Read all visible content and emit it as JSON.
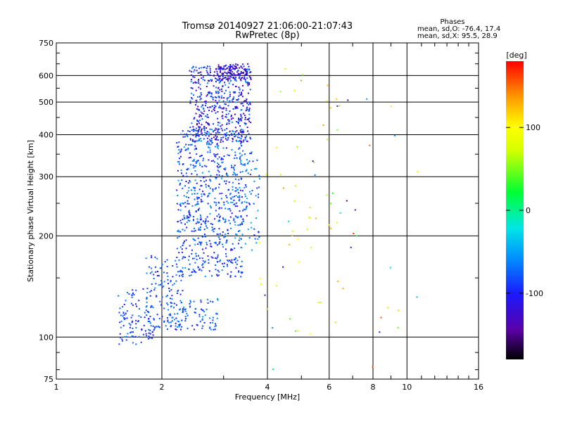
{
  "header": {
    "title_line1": "Tromsø 20140927 21:06:00-21:07:43",
    "title_line2": "RwPretec (8p)"
  },
  "stats": {
    "heading": "Phases",
    "line_o": "mean, sd,O: -76.4, 17.4",
    "line_x": "mean, sd,X: 95.5, 28.9"
  },
  "colorbar": {
    "unit": "[deg]",
    "ticks": [
      "100",
      "0",
      "-100"
    ],
    "tick_values": [
      100,
      0,
      -100
    ],
    "range": [
      -180,
      180
    ]
  },
  "chart_data": {
    "type": "scatter",
    "xlabel": "Frequency [MHz]",
    "ylabel": "Stationary phase Virtual Height [km]",
    "xscale": "log",
    "yscale": "log",
    "xlim": [
      1,
      16
    ],
    "ylim": [
      75,
      750
    ],
    "x_ticks": [
      1,
      2,
      4,
      6,
      8,
      10,
      16
    ],
    "x_tick_labels": [
      "1",
      "2",
      "4",
      "6",
      "8",
      "10",
      "16"
    ],
    "y_ticks": [
      75,
      100,
      200,
      300,
      400,
      500,
      600,
      750
    ],
    "y_tick_labels": [
      "75",
      "100",
      "200",
      "300",
      "400",
      "500",
      "600",
      "750"
    ],
    "grid": true,
    "clusters": [
      {
        "x": [
          1.5,
          1.9
        ],
        "y": [
          95,
          140
        ],
        "phase": [
          -110,
          -60
        ],
        "n": 110
      },
      {
        "x": [
          1.8,
          2.3
        ],
        "y": [
          105,
          175
        ],
        "phase": [
          -110,
          -60
        ],
        "n": 130
      },
      {
        "x": [
          2.1,
          2.9
        ],
        "y": [
          105,
          130
        ],
        "phase": [
          -110,
          -50
        ],
        "n": 90
      },
      {
        "x": [
          2.2,
          3.4
        ],
        "y": [
          150,
          230
        ],
        "phase": [
          -115,
          -55
        ],
        "n": 260
      },
      {
        "x": [
          2.2,
          3.5
        ],
        "y": [
          220,
          420
        ],
        "phase": [
          -120,
          -50
        ],
        "n": 420
      },
      {
        "x": [
          2.4,
          3.6
        ],
        "y": [
          380,
          640
        ],
        "phase": [
          -150,
          -50
        ],
        "n": 520
      },
      {
        "x": [
          2.9,
          3.6
        ],
        "y": [
          580,
          650
        ],
        "phase": [
          -160,
          -80
        ],
        "n": 120
      },
      {
        "x": [
          3.2,
          3.8
        ],
        "y": [
          180,
          360
        ],
        "phase": [
          -100,
          -40
        ],
        "n": 80
      },
      {
        "x": [
          3.8,
          6.6
        ],
        "y": [
          100,
          640
        ],
        "phase": [
          40,
          140
        ],
        "n": 45
      },
      {
        "x": [
          3.8,
          10.8
        ],
        "y": [
          80,
          600
        ],
        "phase": [
          -160,
          170
        ],
        "n": 35
      }
    ]
  }
}
